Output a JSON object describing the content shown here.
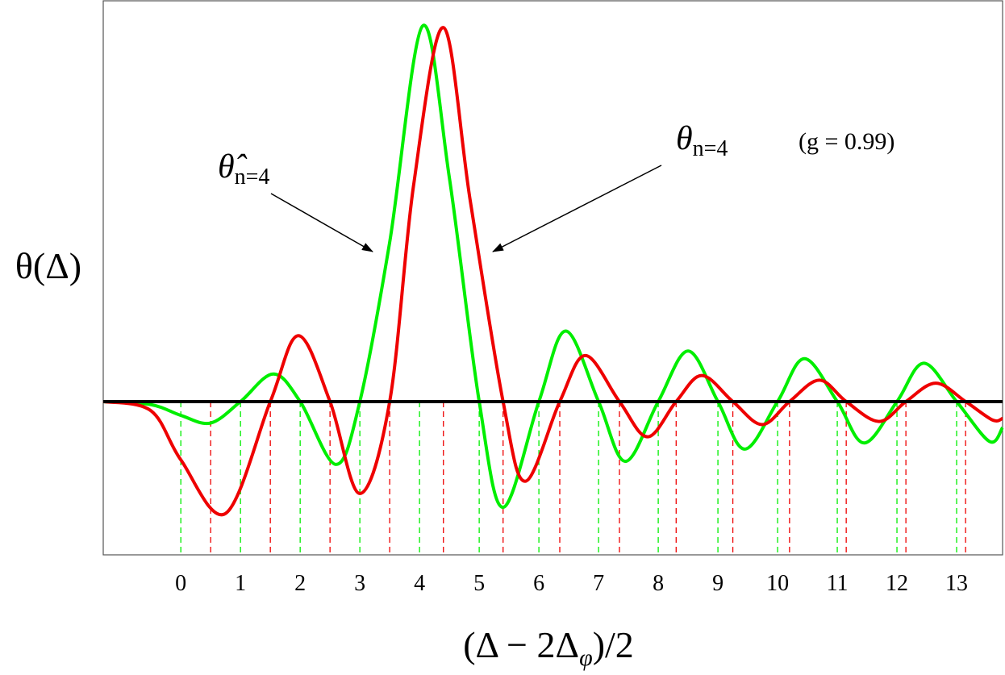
{
  "chart_data": {
    "type": "line",
    "xlabel": {
      "parts": [
        "(Δ − 2Δ",
        "φ",
        ")/2"
      ]
    },
    "ylabel": "θ(Δ)",
    "annotations": [
      {
        "text": "θ̂",
        "sub": "n=4"
      },
      {
        "text": "θ",
        "sub": "n=4"
      },
      {
        "text": "(g = 0.99)"
      }
    ],
    "xlim": [
      -1.3,
      13.77
    ],
    "ylim": [
      -1,
      2.62
    ],
    "xticks": [
      0,
      1,
      2,
      3,
      4,
      5,
      6,
      7,
      8,
      9,
      10,
      11,
      12,
      13
    ],
    "zero_line": true,
    "series": [
      {
        "color": "#00ee00",
        "x": [
          -1.3,
          -0.5,
          0,
          0.5,
          1,
          1.55,
          2,
          2.6,
          3,
          3.5,
          4.05,
          4.5,
          5,
          5.4,
          6,
          6.45,
          7,
          7.45,
          8,
          8.5,
          9,
          9.45,
          10,
          10.45,
          11,
          11.45,
          12,
          12.45,
          13,
          13.55,
          13.77
        ],
        "values": [
          0,
          -0.02,
          -0.09,
          -0.14,
          0,
          0.18,
          0,
          -0.41,
          0,
          1.04,
          2.45,
          1.46,
          0,
          -0.69,
          0,
          0.46,
          0,
          -0.39,
          0,
          0.33,
          0,
          -0.31,
          0,
          0.28,
          0,
          -0.27,
          0,
          0.25,
          0,
          -0.26,
          -0.17
        ],
        "markers": [
          0,
          1,
          2,
          3,
          4,
          5,
          6,
          7,
          8,
          9,
          10,
          11,
          12,
          13
        ]
      },
      {
        "color": "#ee0000",
        "x": [
          -1.3,
          -0.5,
          0,
          0.75,
          1.5,
          1.97,
          2.5,
          3.0,
          3.5,
          3.9,
          4.4,
          4.85,
          5.4,
          5.77,
          6.35,
          6.78,
          7.35,
          7.82,
          8.3,
          8.73,
          9.25,
          9.74,
          10.2,
          10.7,
          11.15,
          11.7,
          12.15,
          12.65,
          13.15,
          13.6,
          13.77
        ],
        "values": [
          0,
          -0.06,
          -0.38,
          -0.73,
          0,
          0.43,
          0,
          -0.6,
          0,
          1.41,
          2.44,
          1.31,
          0,
          -0.52,
          0,
          0.3,
          0,
          -0.23,
          0,
          0.17,
          0,
          -0.15,
          0,
          0.14,
          0,
          -0.13,
          0,
          0.12,
          0,
          -0.12,
          -0.11
        ],
        "markers": [
          0.5,
          1.5,
          2.5,
          3.5,
          4.4,
          5.4,
          6.35,
          7.35,
          8.3,
          9.25,
          10.2,
          11.15,
          12.15,
          13.15
        ]
      }
    ]
  }
}
